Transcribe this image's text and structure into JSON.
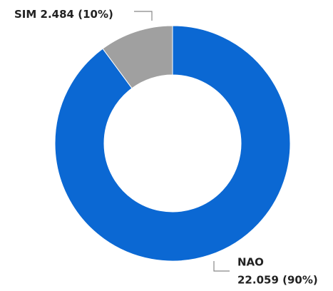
{
  "chart_data": {
    "type": "donut",
    "categories": [
      "NAO",
      "SIM"
    ],
    "values": [
      22.059,
      2.484
    ],
    "value_labels": [
      "22.059 (90%)",
      "2.484 (10%)"
    ],
    "colors": [
      "#0b68d3",
      "#a0a0a0"
    ]
  }
}
